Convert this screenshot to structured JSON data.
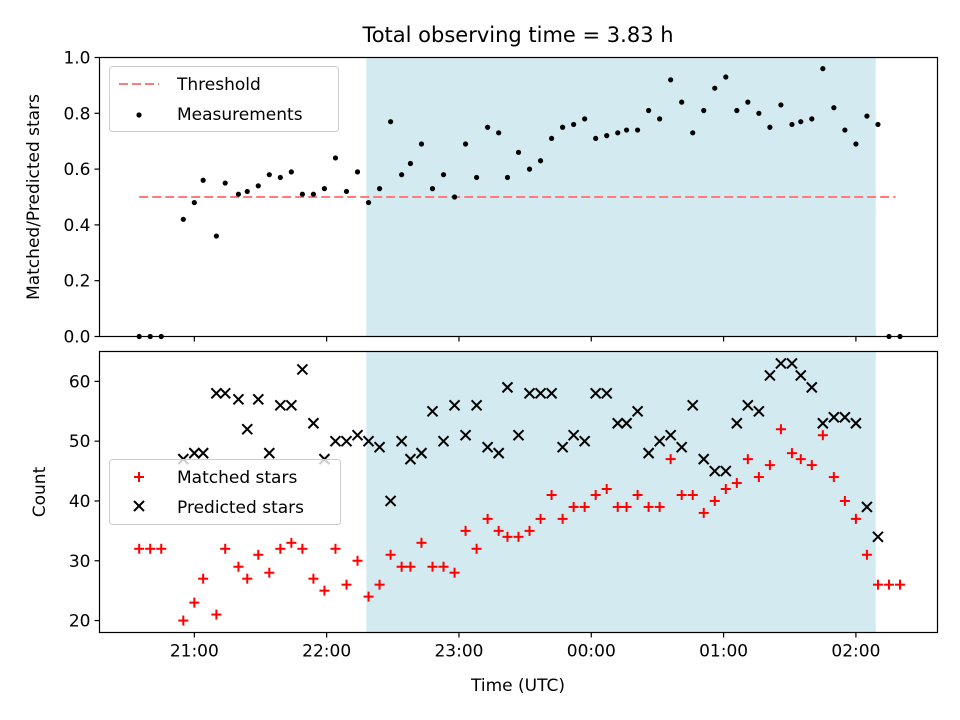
{
  "chart_data": [
    {
      "type": "scatter",
      "title": "Total observing time = 3.83 h",
      "xlabel": "",
      "ylabel": "Matched/Predicted stars",
      "ylim": [
        0,
        1
      ],
      "yticks": [
        "0.0",
        "0.2",
        "0.4",
        "0.6",
        "0.8",
        "1.0"
      ],
      "xticks": [
        "21:00",
        "22:00",
        "23:00",
        "00:00",
        "01:00",
        "02:00"
      ],
      "x_range": [
        "20:17",
        "02:37"
      ],
      "grid": false,
      "legend_position": "top-left",
      "highlight_span": {
        "start": "22:18",
        "end": "02:09",
        "color": "#d3eaf1"
      },
      "threshold": {
        "name": "Threshold",
        "value": 0.5,
        "x_start": "20:35",
        "x_end": "02:18",
        "color": "#ff7b7b",
        "style": "dashed"
      },
      "series": [
        {
          "name": "Measurements",
          "color": "#000000",
          "x": [
            "20:35",
            "20:40",
            "20:45",
            "20:55",
            "21:00",
            "21:04",
            "21:10",
            "21:14",
            "21:20",
            "21:24",
            "21:29",
            "21:34",
            "21:39",
            "21:44",
            "21:49",
            "21:54",
            "21:59",
            "22:04",
            "22:09",
            "22:14",
            "22:19",
            "22:24",
            "22:29",
            "22:34",
            "22:38",
            "22:43",
            "22:48",
            "22:53",
            "22:58",
            "23:03",
            "23:08",
            "23:13",
            "23:18",
            "23:22",
            "23:27",
            "23:32",
            "23:37",
            "23:42",
            "23:47",
            "23:52",
            "23:57",
            "00:02",
            "00:07",
            "00:12",
            "00:16",
            "00:21",
            "00:26",
            "00:31",
            "00:36",
            "00:41",
            "00:46",
            "00:51",
            "00:56",
            "01:01",
            "01:06",
            "01:11",
            "01:16",
            "01:21",
            "01:26",
            "01:31",
            "01:35",
            "01:40",
            "01:45",
            "01:50",
            "01:55",
            "02:00",
            "02:05",
            "02:10",
            "02:15",
            "02:20"
          ],
          "y": [
            0.0,
            0.0,
            0.0,
            0.42,
            0.48,
            0.56,
            0.36,
            0.55,
            0.51,
            0.52,
            0.54,
            0.58,
            0.57,
            0.59,
            0.51,
            0.51,
            0.53,
            0.64,
            0.52,
            0.59,
            0.48,
            0.53,
            0.77,
            0.58,
            0.62,
            0.69,
            0.53,
            0.58,
            0.5,
            0.69,
            0.57,
            0.75,
            0.73,
            0.57,
            0.66,
            0.6,
            0.63,
            0.71,
            0.75,
            0.76,
            0.78,
            0.71,
            0.72,
            0.73,
            0.74,
            0.74,
            0.81,
            0.78,
            0.92,
            0.84,
            0.73,
            0.81,
            0.89,
            0.93,
            0.81,
            0.84,
            0.8,
            0.75,
            0.83,
            0.76,
            0.77,
            0.78,
            0.96,
            0.82,
            0.74,
            0.69,
            0.79,
            0.76,
            0.0,
            0.0
          ]
        }
      ]
    },
    {
      "type": "scatter",
      "title": "",
      "xlabel": "Time (UTC)",
      "ylabel": "Count",
      "ylim": [
        18,
        65
      ],
      "yticks": [
        "20",
        "30",
        "40",
        "50",
        "60"
      ],
      "xticks": [
        "21:00",
        "22:00",
        "23:00",
        "00:00",
        "01:00",
        "02:00"
      ],
      "x_range": [
        "20:17",
        "02:37"
      ],
      "grid": false,
      "legend_position": "center-left",
      "highlight_span": {
        "start": "22:18",
        "end": "02:09",
        "color": "#d3eaf1"
      },
      "series": [
        {
          "name": "Matched stars",
          "marker": "plus",
          "color": "#ff0000",
          "x": [
            "20:35",
            "20:40",
            "20:45",
            "20:55",
            "21:00",
            "21:04",
            "21:10",
            "21:14",
            "21:20",
            "21:24",
            "21:29",
            "21:34",
            "21:39",
            "21:44",
            "21:49",
            "21:54",
            "21:59",
            "22:04",
            "22:09",
            "22:14",
            "22:19",
            "22:24",
            "22:29",
            "22:34",
            "22:38",
            "22:43",
            "22:48",
            "22:53",
            "22:58",
            "23:03",
            "23:08",
            "23:13",
            "23:18",
            "23:22",
            "23:27",
            "23:32",
            "23:37",
            "23:42",
            "23:47",
            "23:52",
            "23:57",
            "00:02",
            "00:07",
            "00:12",
            "00:16",
            "00:21",
            "00:26",
            "00:31",
            "00:36",
            "00:41",
            "00:46",
            "00:51",
            "00:56",
            "01:01",
            "01:06",
            "01:11",
            "01:16",
            "01:21",
            "01:26",
            "01:31",
            "01:35",
            "01:40",
            "01:45",
            "01:50",
            "01:55",
            "02:00",
            "02:05",
            "02:10",
            "02:15",
            "02:20"
          ],
          "y": [
            32,
            32,
            32,
            20,
            23,
            27,
            21,
            32,
            29,
            27,
            31,
            28,
            32,
            33,
            32,
            27,
            25,
            32,
            26,
            30,
            24,
            26,
            31,
            29,
            29,
            33,
            29,
            29,
            28,
            35,
            32,
            37,
            35,
            34,
            34,
            35,
            37,
            41,
            37,
            39,
            39,
            41,
            42,
            39,
            39,
            41,
            39,
            39,
            47,
            41,
            41,
            38,
            40,
            42,
            43,
            47,
            44,
            46,
            52,
            48,
            47,
            46,
            51,
            44,
            40,
            37,
            31,
            26,
            26,
            26
          ]
        },
        {
          "name": "Predicted stars",
          "marker": "x",
          "color": "#000000",
          "x": [
            "20:55",
            "21:00",
            "21:04",
            "21:10",
            "21:14",
            "21:20",
            "21:24",
            "21:29",
            "21:34",
            "21:39",
            "21:44",
            "21:49",
            "21:54",
            "21:59",
            "22:04",
            "22:09",
            "22:14",
            "22:19",
            "22:24",
            "22:29",
            "22:34",
            "22:38",
            "22:43",
            "22:48",
            "22:53",
            "22:58",
            "23:03",
            "23:08",
            "23:13",
            "23:18",
            "23:22",
            "23:27",
            "23:32",
            "23:37",
            "23:42",
            "23:47",
            "23:52",
            "23:57",
            "00:02",
            "00:07",
            "00:12",
            "00:16",
            "00:21",
            "00:26",
            "00:31",
            "00:36",
            "00:41",
            "00:46",
            "00:51",
            "00:56",
            "01:01",
            "01:06",
            "01:11",
            "01:16",
            "01:21",
            "01:26",
            "01:31",
            "01:35",
            "01:40",
            "01:45",
            "01:50",
            "01:55",
            "02:00",
            "02:05",
            "02:10"
          ],
          "y": [
            47,
            48,
            48,
            58,
            58,
            57,
            52,
            57,
            48,
            56,
            56,
            62,
            53,
            47,
            50,
            50,
            51,
            50,
            49,
            40,
            50,
            47,
            48,
            55,
            50,
            56,
            51,
            56,
            49,
            48,
            59,
            51,
            58,
            58,
            58,
            49,
            51,
            50,
            58,
            58,
            53,
            53,
            55,
            48,
            50,
            51,
            49,
            56,
            47,
            45,
            45,
            53,
            56,
            55,
            61,
            63,
            63,
            61,
            59,
            53,
            54,
            54,
            53,
            39,
            34
          ]
        }
      ]
    }
  ]
}
